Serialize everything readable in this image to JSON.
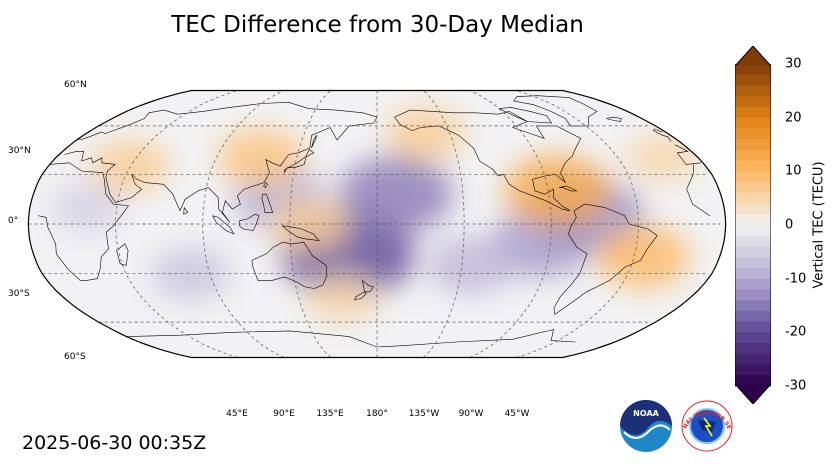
{
  "title": "TEC Difference from 30-Day Median",
  "timestamp": "2025-06-30 00:35Z",
  "map": {
    "projection": "Robinson",
    "central_longitude": 180,
    "latitude_labels": [
      "60°N",
      "30°N",
      "0°",
      "30°S",
      "60°S"
    ],
    "longitude_labels": [
      "45°E",
      "90°E",
      "135°E",
      "180°",
      "135°W",
      "90°W",
      "45°W"
    ],
    "gridlines": "dashed",
    "anomalies": [
      {
        "lon": 165,
        "lat": -18,
        "value": -12
      },
      {
        "lon": 190,
        "lat": 18,
        "value": -9
      },
      {
        "lon": 130,
        "lat": 15,
        "value": -6
      },
      {
        "lon": 265,
        "lat": -12,
        "value": -7
      },
      {
        "lon": 290,
        "lat": 5,
        "value": -8
      },
      {
        "lon": 230,
        "lat": -25,
        "value": -5
      },
      {
        "lon": 80,
        "lat": -30,
        "value": -4
      },
      {
        "lon": 30,
        "lat": 10,
        "value": -3
      },
      {
        "lon": 275,
        "lat": 20,
        "value": 8
      },
      {
        "lon": 320,
        "lat": -20,
        "value": 6
      },
      {
        "lon": 115,
        "lat": 40,
        "value": 5
      },
      {
        "lon": 45,
        "lat": 35,
        "value": 4
      },
      {
        "lon": 145,
        "lat": 0,
        "value": 4
      },
      {
        "lon": 210,
        "lat": 55,
        "value": 4
      },
      {
        "lon": 340,
        "lat": 40,
        "value": 3
      },
      {
        "lon": 160,
        "lat": -45,
        "value": 3
      }
    ]
  },
  "colorbar": {
    "label": "Vertical TEC (TECU)",
    "min": -30,
    "max": 30,
    "ticks": [
      "30",
      "20",
      "10",
      "0",
      "-10",
      "-20",
      "-30"
    ],
    "tick_values": [
      30,
      20,
      10,
      0,
      -10,
      -20,
      -30
    ],
    "colors": {
      "negative_max": "#2d004b",
      "neutral": "#f2f2f2",
      "positive_max": "#7f3b08"
    }
  },
  "logos": {
    "noaa": "NOAA",
    "nws": "NATIONAL WEATHER SERVICE"
  }
}
